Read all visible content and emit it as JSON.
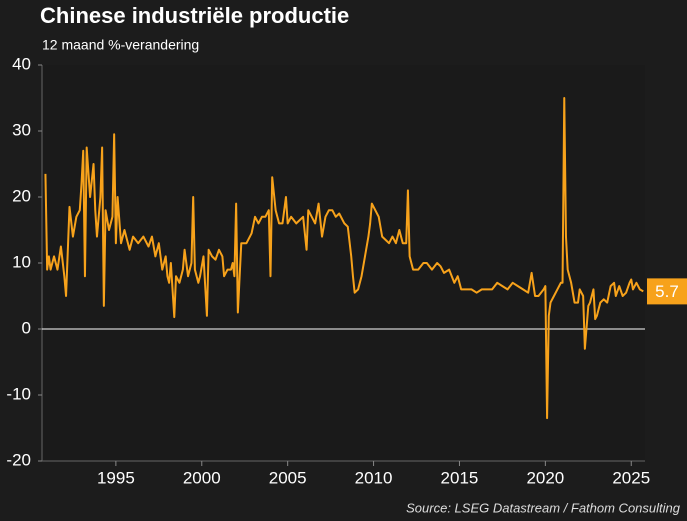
{
  "chart_data": {
    "type": "line",
    "title": "Chinese industriële productie",
    "subtitle": "12 maand %-verandering",
    "source": "Source: LSEG Datastream / Fathom Consulting",
    "xlim": [
      1990.7,
      2025.8
    ],
    "xticks": [
      1995,
      2000,
      2005,
      2010,
      2015,
      2020,
      2025
    ],
    "ylim": [
      -20,
      40
    ],
    "yticks": [
      -20,
      -10,
      0,
      10,
      20,
      30,
      40
    ],
    "grid": false,
    "end_label": 5.7,
    "series": [
      {
        "color": "#f7a21b",
        "x": [
          1990.9,
          1991.0,
          1991.1,
          1991.2,
          1991.4,
          1991.6,
          1991.8,
          1992.0,
          1992.1,
          1992.3,
          1992.5,
          1992.7,
          1992.9,
          1993.0,
          1993.1,
          1993.2,
          1993.3,
          1993.5,
          1993.7,
          1993.8,
          1993.9,
          1994.1,
          1994.2,
          1994.3,
          1994.4,
          1994.6,
          1994.8,
          1994.9,
          1995.0,
          1995.1,
          1995.3,
          1995.5,
          1995.8,
          1996.0,
          1996.3,
          1996.6,
          1996.9,
          1997.1,
          1997.3,
          1997.5,
          1997.7,
          1997.9,
          1998.0,
          1998.1,
          1998.2,
          1998.4,
          1998.5,
          1998.7,
          1998.9,
          1999.0,
          1999.2,
          1999.4,
          1999.5,
          1999.6,
          1999.8,
          1999.9,
          2000.1,
          2000.3,
          2000.4,
          2000.6,
          2000.8,
          2001.0,
          2001.2,
          2001.3,
          2001.5,
          2001.7,
          2001.8,
          2001.9,
          2002.0,
          2002.1,
          2002.3,
          2002.6,
          2002.9,
          2003.1,
          2003.3,
          2003.5,
          2003.7,
          2003.9,
          2004.0,
          2004.1,
          2004.3,
          2004.5,
          2004.7,
          2004.9,
          2005.0,
          2005.2,
          2005.5,
          2005.7,
          2005.9,
          2006.1,
          2006.2,
          2006.4,
          2006.6,
          2006.8,
          2007.0,
          2007.2,
          2007.4,
          2007.6,
          2007.8,
          2008.0,
          2008.3,
          2008.5,
          2008.7,
          2008.8,
          2008.9,
          2009.1,
          2009.3,
          2009.5,
          2009.7,
          2009.8,
          2009.9,
          2010.1,
          2010.3,
          2010.5,
          2010.7,
          2010.9,
          2011.1,
          2011.3,
          2011.5,
          2011.7,
          2011.9,
          2012.0,
          2012.1,
          2012.3,
          2012.6,
          2012.9,
          2013.1,
          2013.4,
          2013.7,
          2013.9,
          2014.1,
          2014.4,
          2014.7,
          2014.9,
          2015.1,
          2015.4,
          2015.7,
          2016.0,
          2016.3,
          2016.6,
          2016.9,
          2017.2,
          2017.5,
          2017.8,
          2018.1,
          2018.4,
          2018.7,
          2019.0,
          2019.2,
          2019.4,
          2019.6,
          2019.9,
          2020.0,
          2020.1,
          2020.2,
          2020.3,
          2020.5,
          2020.7,
          2020.9,
          2021.0,
          2021.1,
          2021.2,
          2021.3,
          2021.5,
          2021.7,
          2021.9,
          2022.0,
          2022.2,
          2022.3,
          2022.5,
          2022.6,
          2022.8,
          2022.9,
          2023.0,
          2023.2,
          2023.4,
          2023.6,
          2023.8,
          2024.0,
          2024.1,
          2024.3,
          2024.5,
          2024.7,
          2024.9,
          2025.0,
          2025.1,
          2025.3,
          2025.5,
          2025.7
        ],
        "values": [
          23.5,
          9,
          11,
          9,
          11,
          9,
          12.5,
          8,
          5,
          18.5,
          14,
          17,
          18,
          22,
          27,
          8,
          27.5,
          20,
          25,
          18,
          14,
          20,
          27.5,
          3.5,
          18,
          15,
          17,
          29.5,
          13,
          20,
          13,
          15,
          12,
          14,
          13,
          14,
          12.5,
          14,
          11,
          13,
          9,
          11,
          8,
          7,
          10,
          1.8,
          8,
          7,
          9,
          12,
          8,
          10,
          20,
          9,
          7,
          8,
          11,
          2,
          12,
          11,
          10.5,
          12,
          11,
          8,
          9,
          9,
          10,
          8,
          19,
          2.5,
          13,
          13,
          14.5,
          17,
          16,
          17,
          17,
          18,
          8,
          23,
          18,
          16,
          16,
          20,
          16,
          17,
          16,
          16.5,
          17,
          12,
          18,
          17,
          16,
          19,
          14,
          17,
          18,
          18,
          17,
          17.5,
          16,
          15.5,
          11,
          8,
          5.5,
          6,
          8,
          11,
          14,
          16,
          19,
          18,
          17,
          14,
          13.5,
          13,
          14,
          13,
          15,
          13,
          13,
          21,
          11,
          9,
          9,
          10,
          10,
          9,
          10,
          9.5,
          8.5,
          9,
          7,
          8,
          6,
          6,
          6,
          5.5,
          6,
          6,
          6,
          7,
          6.5,
          6,
          7,
          6.5,
          6,
          5.5,
          8.5,
          5,
          5,
          6,
          6.5,
          -13.5,
          2,
          4,
          5,
          6,
          7,
          7,
          35,
          14,
          9,
          7,
          4,
          4,
          6,
          5,
          -3,
          3.5,
          4,
          6,
          1.5,
          2,
          4,
          4.5,
          4,
          6.5,
          7,
          5,
          6.5,
          5,
          5.5,
          7,
          7.5,
          6,
          7,
          6,
          5.7
        ]
      }
    ]
  }
}
